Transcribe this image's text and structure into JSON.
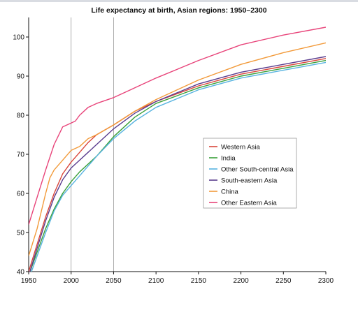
{
  "chart_data": {
    "type": "line",
    "title": "Life expectancy at birth, Asian regions: 1950–2300",
    "xlabel": "",
    "ylabel": "",
    "xlim": [
      1950,
      2300
    ],
    "ylim": [
      40,
      105
    ],
    "x_ticks": [
      "1950",
      "2000",
      "2050",
      "2100",
      "2150",
      "2200",
      "2250",
      "2300"
    ],
    "y_ticks": [
      "40",
      "50",
      "60",
      "70",
      "80",
      "90",
      "100"
    ],
    "reference_lines_x": [
      2000,
      2050
    ],
    "grid": false,
    "legend_position": "right",
    "series": [
      {
        "name": "Western Asia",
        "color": "#d9463b",
        "x": [
          1950,
          1960,
          1970,
          1980,
          1990,
          2000,
          2010,
          2020,
          2030,
          2050,
          2075,
          2100,
          2150,
          2200,
          2250,
          2300
        ],
        "y": [
          40,
          47,
          54,
          60,
          65,
          68,
          70.5,
          73,
          75,
          77.5,
          81,
          83.5,
          87.5,
          90.5,
          92.5,
          94.5
        ]
      },
      {
        "name": "India",
        "color": "#3aa03a",
        "x": [
          1950,
          1960,
          1970,
          1980,
          1990,
          2000,
          2010,
          2020,
          2030,
          2040,
          2050,
          2075,
          2100,
          2150,
          2200,
          2250,
          2300
        ],
        "y": [
          39,
          45,
          51,
          56,
          60,
          63,
          65.5,
          67.5,
          69.5,
          72,
          74.5,
          79.5,
          83,
          87,
          90,
          92,
          94
        ]
      },
      {
        "name": "Other South-central Asia",
        "color": "#57b3e0",
        "x": [
          1950,
          1960,
          1970,
          1980,
          1990,
          2000,
          2010,
          2020,
          2030,
          2050,
          2075,
          2100,
          2150,
          2200,
          2250,
          2300
        ],
        "y": [
          38,
          44,
          50,
          55.5,
          59.5,
          62,
          64.5,
          67,
          69.5,
          74,
          78.5,
          82,
          86.5,
          89.5,
          91.5,
          93.5
        ]
      },
      {
        "name": "South-eastern Asia",
        "color": "#5a3c8e",
        "x": [
          1950,
          1960,
          1970,
          1980,
          1990,
          2000,
          2010,
          2020,
          2030,
          2050,
          2075,
          2100,
          2150,
          2200,
          2250,
          2300
        ],
        "y": [
          39,
          46,
          53,
          59,
          63.5,
          66.5,
          68.5,
          70.5,
          72.5,
          76.5,
          80.5,
          83.5,
          88,
          91,
          93,
          95
        ]
      },
      {
        "name": "China",
        "color": "#f29a3a",
        "x": [
          1950,
          1960,
          1970,
          1975,
          1980,
          1990,
          2000,
          2010,
          2020,
          2030,
          2050,
          2075,
          2100,
          2150,
          2200,
          2250,
          2300
        ],
        "y": [
          44,
          51,
          60,
          64,
          66,
          68.5,
          71,
          72,
          74,
          75,
          77.5,
          81,
          84,
          89,
          93,
          96,
          98.5
        ]
      },
      {
        "name": "Other Eastern Asia",
        "color": "#e8447a",
        "x": [
          1950,
          1960,
          1970,
          1980,
          1990,
          2000,
          2005,
          2010,
          2020,
          2030,
          2050,
          2075,
          2100,
          2150,
          2200,
          2250,
          2300
        ],
        "y": [
          52,
          59,
          66,
          72.5,
          77,
          78,
          78.5,
          80,
          82,
          83,
          84.5,
          87,
          89.5,
          94,
          98,
          100.5,
          102.5
        ]
      }
    ]
  }
}
